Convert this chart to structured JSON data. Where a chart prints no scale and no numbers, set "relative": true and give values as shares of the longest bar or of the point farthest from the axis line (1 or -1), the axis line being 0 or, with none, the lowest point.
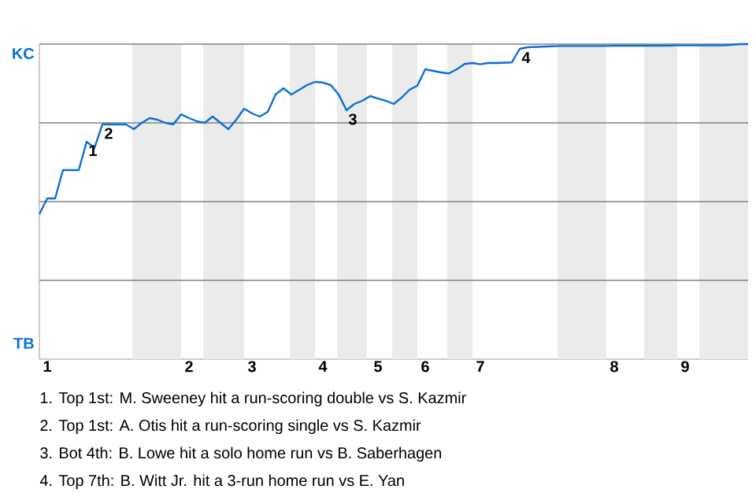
{
  "chart_data": {
    "type": "line",
    "relative": true,
    "categories": [
      null,
      "1",
      null,
      null,
      null,
      null,
      null,
      null,
      null,
      null,
      null,
      null,
      null,
      null,
      null,
      null,
      null,
      null,
      null,
      "2",
      null,
      null,
      null,
      null,
      null,
      null,
      null,
      "3",
      null,
      null,
      null,
      null,
      null,
      null,
      null,
      null,
      "4",
      null,
      null,
      null,
      null,
      null,
      null,
      "5",
      null,
      null,
      null,
      null,
      null,
      "6",
      null,
      null,
      null,
      null,
      null,
      null,
      "7",
      null,
      null,
      null,
      null,
      null,
      null,
      null,
      null,
      null,
      null,
      null,
      null,
      null,
      null,
      null,
      null,
      "8",
      null,
      null,
      null,
      null,
      null,
      null,
      null,
      null,
      "9",
      null,
      null,
      null,
      null,
      null,
      null,
      null,
      null
    ],
    "grid": "y",
    "line_style": "solid",
    "marker": "none",
    "series": [
      {
        "color": "#0a6fd6",
        "values": [
          0.46,
          0.51,
          0.51,
          0.6,
          0.6,
          0.6,
          0.69,
          0.67,
          0.745,
          0.745,
          0.745,
          0.745,
          0.73,
          0.75,
          0.765,
          0.76,
          0.75,
          0.745,
          0.777,
          0.765,
          0.755,
          0.75,
          0.77,
          0.75,
          0.73,
          0.76,
          0.795,
          0.78,
          0.77,
          0.785,
          0.84,
          0.86,
          0.84,
          0.855,
          0.87,
          0.88,
          0.878,
          0.87,
          0.84,
          0.79,
          0.81,
          0.82,
          0.835,
          0.827,
          0.82,
          0.81,
          0.83,
          0.855,
          0.868,
          0.92,
          0.915,
          0.91,
          0.907,
          0.92,
          0.937,
          0.94,
          0.936,
          0.94,
          0.94,
          0.941,
          0.942,
          0.985,
          0.99,
          0.991,
          0.992,
          0.993,
          0.994,
          0.994,
          0.994,
          0.994,
          0.994,
          0.994,
          0.994,
          0.995,
          0.995,
          0.995,
          0.995,
          0.995,
          0.995,
          0.995,
          0.995,
          0.996,
          0.996,
          0.996,
          0.996,
          0.996,
          0.996,
          0.996,
          0.998,
          1,
          1
        ]
      }
    ],
    "annotations": [
      {
        "text": "1",
        "y": 0.69
      },
      {
        "text": "2",
        "y": 0.745
      },
      {
        "text": "3",
        "y": 0.79
      },
      {
        "text": "4",
        "y": 0.985
      },
      "KC",
      "TB",
      "1. Top 1st: M. Sweeney hit a run-scoring double vs S. Kazmir",
      "2. Top 1st: A. Otis hit a run-scoring single vs S. Kazmir",
      "3. Bot 4th: B. Lowe hit a solo home run vs B. Saberhagen",
      "4. Top 7th: B. Witt Jr. hit a 3-run home run vs E. Yan"
    ]
  }
}
